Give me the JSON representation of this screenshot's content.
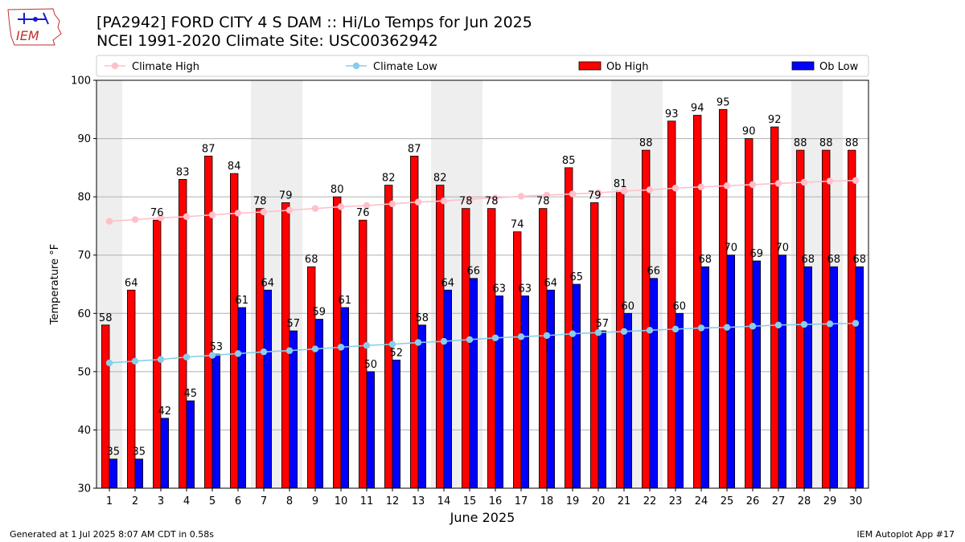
{
  "header": {
    "title_line1": "[PA2942] FORD CITY 4 S DAM :: Hi/Lo Temps for Jun 2025",
    "title_line2": "NCEI 1991-2020 Climate Site: USC00362942",
    "logo_text": "IEM"
  },
  "footer": {
    "generated": "Generated at 1 Jul 2025 8:07 AM CDT in 0.58s",
    "app": "IEM Autoplot App #17"
  },
  "chart_data": {
    "type": "bar",
    "xlabel": "June 2025",
    "ylabel": "Temperature °F",
    "ylim": [
      30,
      100
    ],
    "yticks": [
      30,
      40,
      50,
      60,
      70,
      80,
      90,
      100
    ],
    "grid": true,
    "legend_placement": "top",
    "weekend_days": [
      1,
      7,
      8,
      14,
      15,
      21,
      22,
      28,
      29
    ],
    "categories": [
      1,
      2,
      3,
      4,
      5,
      6,
      7,
      8,
      9,
      10,
      11,
      12,
      13,
      14,
      15,
      16,
      17,
      18,
      19,
      20,
      21,
      22,
      23,
      24,
      25,
      26,
      27,
      28,
      29,
      30
    ],
    "series": [
      {
        "name": "Climate High",
        "kind": "line",
        "color": "#ffc0cb",
        "values": [
          75.8,
          76.1,
          76.4,
          76.6,
          76.9,
          77.2,
          77.4,
          77.7,
          78.0,
          78.3,
          78.5,
          78.8,
          79.1,
          79.3,
          79.6,
          79.8,
          80.1,
          80.3,
          80.5,
          80.7,
          81.0,
          81.2,
          81.5,
          81.7,
          81.9,
          82.1,
          82.3,
          82.5,
          82.7,
          82.8
        ]
      },
      {
        "name": "Climate Low",
        "kind": "line",
        "color": "#87ceeb",
        "values": [
          51.5,
          51.8,
          52.1,
          52.5,
          52.8,
          53.1,
          53.4,
          53.6,
          53.9,
          54.2,
          54.5,
          54.7,
          55.0,
          55.2,
          55.5,
          55.8,
          56.0,
          56.2,
          56.5,
          56.7,
          56.9,
          57.1,
          57.3,
          57.5,
          57.6,
          57.8,
          58.0,
          58.1,
          58.2,
          58.3
        ]
      },
      {
        "name": "Ob High",
        "kind": "bar",
        "color": "#ff0000",
        "values": [
          58,
          64,
          76,
          83,
          87,
          84,
          78,
          79,
          68,
          80,
          76,
          82,
          87,
          82,
          78,
          78,
          74,
          78,
          85,
          79,
          81,
          88,
          93,
          94,
          95,
          90,
          92,
          88,
          88,
          88
        ]
      },
      {
        "name": "Ob Low",
        "kind": "bar",
        "color": "#0000ff",
        "values": [
          35,
          35,
          42,
          45,
          53,
          61,
          64,
          57,
          59,
          61,
          50,
          52,
          58,
          64,
          66,
          63,
          63,
          64,
          65,
          57,
          60,
          66,
          60,
          68,
          70,
          69,
          70,
          68,
          68,
          68
        ]
      }
    ]
  }
}
